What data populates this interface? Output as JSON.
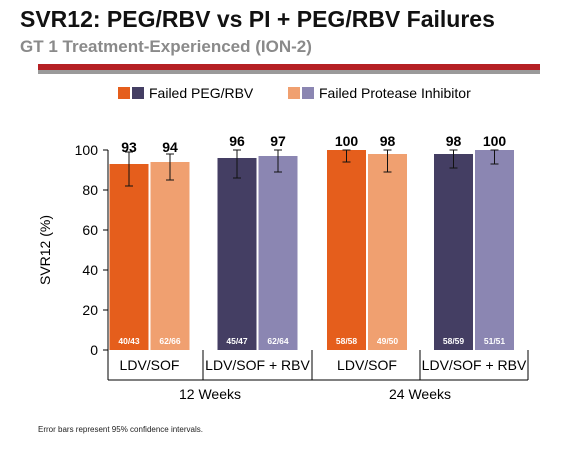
{
  "header": {
    "title": "SVR12: PEG/RBV vs PI + PEG/RBV Failures",
    "subtitle": "GT 1 Treatment-Experienced (ION-2)"
  },
  "footnote": "Error bars represent 95% confidence intervals.",
  "colors": {
    "failed_peg_rbv_no_rbv": "#e55e1c",
    "failed_pi_no_rbv": "#f0a070",
    "failed_peg_rbv_rbv": "#443e63",
    "failed_pi_rbv": "#8b86b2",
    "header_rule": "#b52024",
    "header_rule_secondary": "#9a9a9a"
  },
  "chart_data": {
    "type": "bar",
    "ylabel": "SVR12 (%)",
    "ylim": [
      0,
      100
    ],
    "yticks": [
      0,
      20,
      40,
      60,
      80,
      100
    ],
    "legend": {
      "placement": "top",
      "items": [
        {
          "label": "Failed PEG/RBV",
          "swatches": [
            "#e55e1c",
            "#443e63"
          ]
        },
        {
          "label": "Failed Protease Inhibitor",
          "swatches": [
            "#f0a070",
            "#8b86b2"
          ]
        }
      ]
    },
    "groups": [
      {
        "label": "LDV/SOF",
        "duration": "12 Weeks"
      },
      {
        "label": "LDV/SOF + RBV",
        "duration": "12 Weeks"
      },
      {
        "label": "LDV/SOF",
        "duration": "24 Weeks"
      },
      {
        "label": "LDV/SOF + RBV",
        "duration": "24 Weeks"
      }
    ],
    "durations": [
      "12 Weeks",
      "24 Weeks"
    ],
    "series": [
      {
        "name": "Failed PEG/RBV",
        "values": [
          93,
          96,
          100,
          98
        ],
        "n_labels": [
          "40/43",
          "45/47",
          "58/58",
          "58/59"
        ],
        "ci": [
          [
            82,
            99
          ],
          [
            86,
            100
          ],
          [
            94,
            100
          ],
          [
            91,
            100
          ]
        ],
        "colors": [
          "#e55e1c",
          "#443e63",
          "#e55e1c",
          "#443e63"
        ]
      },
      {
        "name": "Failed Protease Inhibitor",
        "values": [
          94,
          97,
          98,
          100
        ],
        "n_labels": [
          "62/66",
          "62/64",
          "49/50",
          "51/51"
        ],
        "ci": [
          [
            85,
            98
          ],
          [
            89,
            100
          ],
          [
            89,
            100
          ],
          [
            93,
            100
          ]
        ],
        "colors": [
          "#f0a070",
          "#8b86b2",
          "#f0a070",
          "#8b86b2"
        ]
      }
    ]
  }
}
